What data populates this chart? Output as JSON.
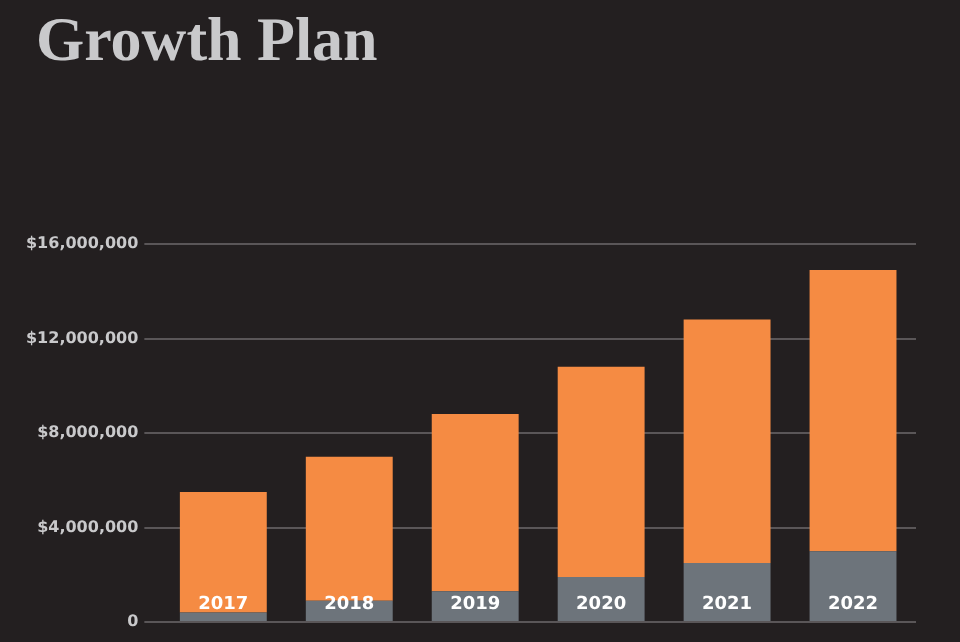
{
  "chart_data": {
    "type": "bar",
    "title": "Growth Plan",
    "stacked": true,
    "categories": [
      "2017",
      "2018",
      "2019",
      "2020",
      "2021",
      "2022"
    ],
    "series": [
      {
        "color": "#6d747b",
        "values": [
          400000,
          900000,
          1300000,
          1900000,
          2500000,
          3000000
        ]
      },
      {
        "color": "#f58b43",
        "values": [
          5100000,
          6100000,
          7500000,
          8900000,
          10300000,
          11900000
        ]
      }
    ],
    "ylim": [
      0,
      16000000
    ],
    "yticks": [
      {
        "value": 0,
        "label": "0"
      },
      {
        "value": 4000000,
        "label": "$4,000,000"
      },
      {
        "value": 8000000,
        "label": "$8,000,000"
      },
      {
        "value": 12000000,
        "label": "$12,000,000"
      },
      {
        "value": 16000000,
        "label": "$16,000,000"
      }
    ],
    "grid": "y",
    "legend": false
  }
}
